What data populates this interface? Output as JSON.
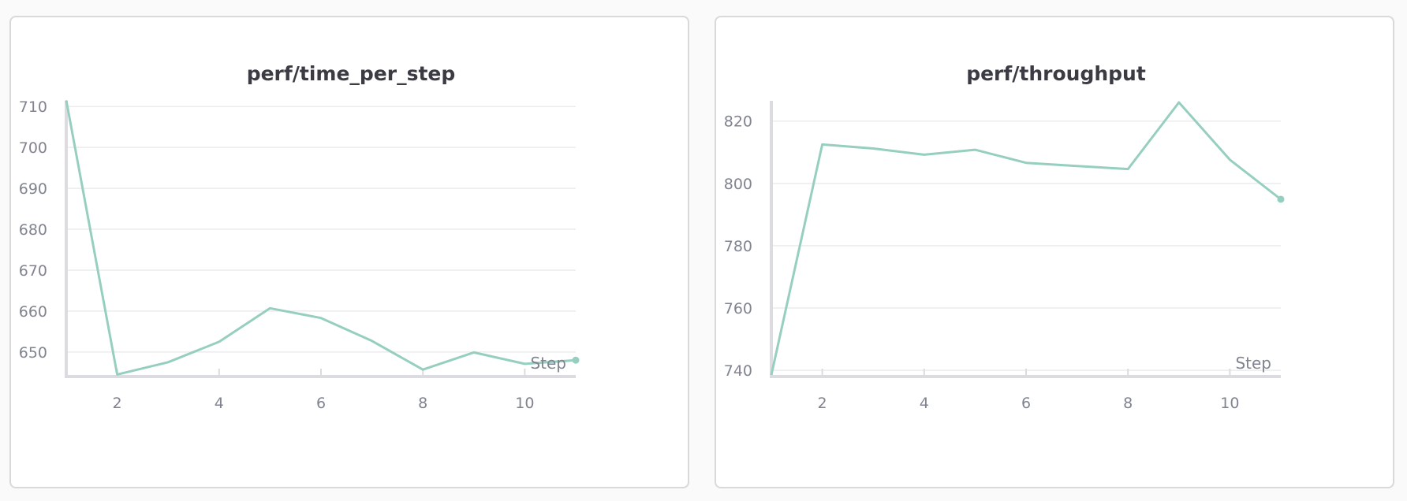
{
  "panels": [
    {
      "title": "perf/time_per_step"
    },
    {
      "title": "perf/throughput"
    }
  ],
  "chart_data": [
    {
      "type": "line",
      "title": "perf/time_per_step",
      "xlabel": "Step",
      "ylabel": "",
      "xlim": [
        1,
        11
      ],
      "ylim": [
        644,
        711
      ],
      "xticks": [
        2,
        4,
        6,
        8,
        10
      ],
      "yticks": [
        650,
        660,
        670,
        680,
        690,
        700,
        710
      ],
      "grid": true,
      "color": "#96cfbf",
      "series": [
        {
          "x": [
            1,
            2,
            3,
            4,
            5,
            6,
            7,
            8,
            9,
            10,
            11
          ],
          "values": [
            711.5,
            644.5,
            647.5,
            652.5,
            660.7,
            658.3,
            652.7,
            645.7,
            649.9,
            647.1,
            648.0
          ]
        }
      ]
    },
    {
      "type": "line",
      "title": "perf/throughput",
      "xlabel": "Step",
      "ylabel": "",
      "xlim": [
        1,
        11
      ],
      "ylim": [
        738,
        826
      ],
      "xticks": [
        2,
        4,
        6,
        8,
        10
      ],
      "yticks": [
        740,
        760,
        780,
        800,
        820
      ],
      "grid": true,
      "color": "#96cfbf",
      "series": [
        {
          "x": [
            1,
            2,
            3,
            4,
            5,
            6,
            7,
            8,
            9,
            10,
            11
          ],
          "values": [
            738.5,
            812.5,
            811.2,
            809.2,
            810.8,
            806.6,
            805.6,
            804.6,
            826.0,
            807.6,
            794.9
          ]
        }
      ]
    }
  ]
}
